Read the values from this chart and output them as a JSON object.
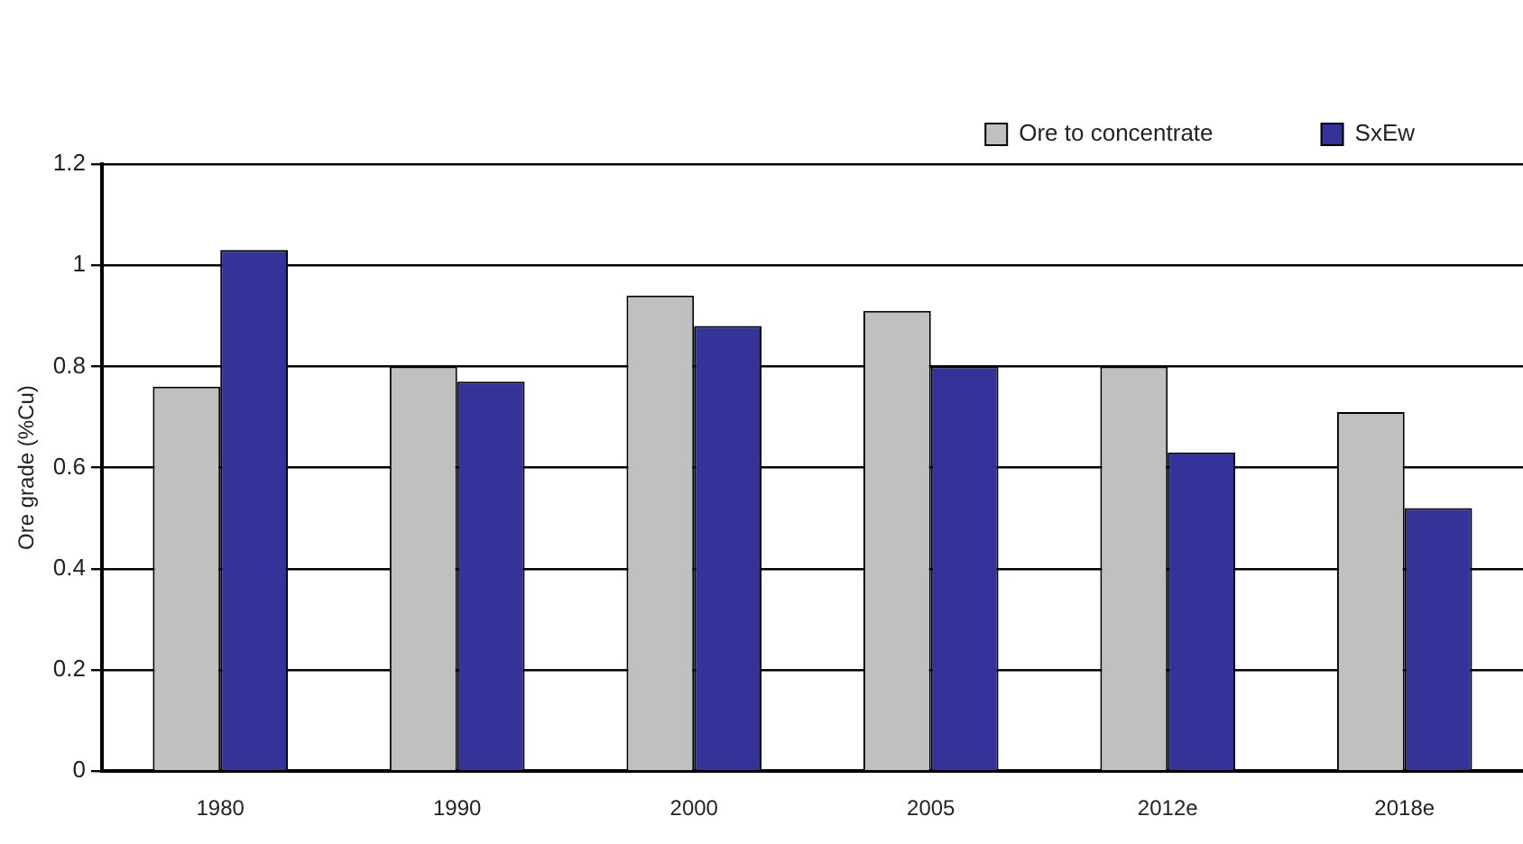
{
  "chart_data": {
    "type": "bar",
    "ylabel": "Ore grade (%Cu)",
    "categories": [
      "1980",
      "1990",
      "2000",
      "2005",
      "2012e",
      "2018e"
    ],
    "series": [
      {
        "name": "Ore to concentrate",
        "color": "#c0c0c0",
        "values": [
          0.76,
          0.8,
          0.94,
          0.91,
          0.8,
          0.71
        ]
      },
      {
        "name": "SxEw",
        "color": "#333399",
        "values": [
          1.03,
          0.77,
          0.88,
          0.8,
          0.63,
          0.52
        ]
      }
    ],
    "ylim": [
      0,
      1.2
    ],
    "yticks": [
      0,
      0.2,
      0.4,
      0.6,
      0.8,
      1,
      1.2
    ],
    "grid": "y",
    "legend": "top right"
  }
}
